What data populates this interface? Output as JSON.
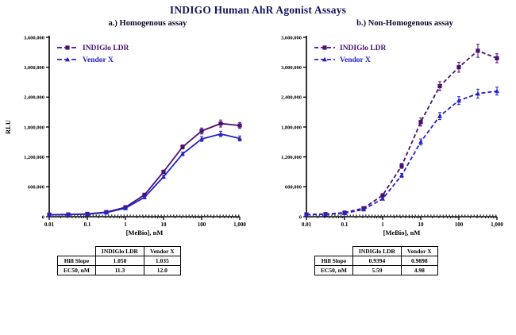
{
  "title": "INDIGO Human AhR Agonist Assays",
  "colors": {
    "title_text": "#14145c",
    "indiglo_purple": "#4b0f72",
    "vendor_blue": "#2323c8",
    "baseline_black": "#000000"
  },
  "chart_data": [
    {
      "type": "line",
      "title": "a.) Homogenous assay",
      "xlabel": "[MeBio], nM",
      "ylabel": "RLU",
      "x_scale": "log",
      "grid": false,
      "legend_position": "top-left",
      "xlim": [
        0.01,
        1000
      ],
      "ylim": [
        0,
        3600000
      ],
      "x_ticks": [
        "0.01",
        "0.1",
        "1",
        "10",
        "100",
        "1,000"
      ],
      "x_tick_values": [
        0.01,
        0.1,
        1,
        10,
        100,
        1000
      ],
      "y_ticks": [
        0,
        600000,
        1200000,
        1800000,
        2400000,
        3000000,
        3600000
      ],
      "x": [
        0.01,
        0.0316,
        0.1,
        0.316,
        1,
        3.16,
        10,
        31.6,
        100,
        316,
        1000
      ],
      "series": [
        {
          "name": "baseline-control",
          "color": "#000000",
          "dash": "1.5,2.4",
          "width": 1.2,
          "marker": "none",
          "legend": false,
          "values": [
            30000,
            30000,
            30000,
            30000,
            30000,
            30000,
            30000,
            30000,
            30000,
            30000,
            30000
          ]
        },
        {
          "name": "INDIGlo LDR",
          "color": "#4b0f72",
          "dash": "",
          "marker": "square",
          "legend": true,
          "values": [
            42000,
            45000,
            56000,
            92000,
            190000,
            440000,
            900000,
            1400000,
            1720000,
            1870000,
            1830000
          ],
          "errors": [
            5000,
            5000,
            6000,
            8000,
            12000,
            20000,
            35000,
            40000,
            60000,
            70000,
            60000
          ]
        },
        {
          "name": "Vendor X",
          "color": "#2323c8",
          "dash": "",
          "marker": "triangle",
          "legend": true,
          "values": [
            40000,
            43000,
            52000,
            84000,
            170000,
            390000,
            800000,
            1260000,
            1560000,
            1660000,
            1570000
          ],
          "errors": [
            4000,
            4000,
            5000,
            7000,
            10000,
            18000,
            30000,
            35000,
            50000,
            55000,
            50000
          ]
        }
      ]
    },
    {
      "type": "line",
      "title": "b.) Non-Homogenous assay",
      "xlabel": "[MeBio], nM",
      "ylabel": "",
      "x_scale": "log",
      "grid": false,
      "legend_position": "top-left",
      "xlim": [
        0.01,
        1000
      ],
      "ylim": [
        0,
        3600000
      ],
      "x_ticks": [
        "0.01",
        "0.1",
        "1",
        "10",
        "100",
        "1,000"
      ],
      "x_tick_values": [
        0.01,
        0.1,
        1,
        10,
        100,
        1000
      ],
      "y_ticks": [
        0,
        600000,
        1200000,
        1800000,
        2400000,
        3000000,
        3600000
      ],
      "x": [
        0.01,
        0.0316,
        0.1,
        0.316,
        1,
        3.16,
        10,
        31.6,
        100,
        316,
        1000
      ],
      "series": [
        {
          "name": "baseline-control",
          "color": "#000000",
          "dash": "1.5,2.4",
          "width": 1.2,
          "marker": "none",
          "legend": false,
          "values": [
            30000,
            30000,
            30000,
            30000,
            30000,
            30000,
            30000,
            30000,
            30000,
            30000,
            30000
          ]
        },
        {
          "name": "INDIGlo LDR",
          "color": "#4b0f72",
          "dash": "5,3",
          "marker": "square",
          "legend": true,
          "values": [
            46000,
            52000,
            82000,
            170000,
            430000,
            1020000,
            1900000,
            2620000,
            3000000,
            3330000,
            3180000
          ],
          "errors": [
            5000,
            6000,
            8000,
            12000,
            25000,
            50000,
            80000,
            90000,
            100000,
            130000,
            90000
          ]
        },
        {
          "name": "Vendor X",
          "color": "#2323c8",
          "dash": "5,3",
          "marker": "triangle",
          "legend": true,
          "values": [
            42000,
            47000,
            70000,
            145000,
            360000,
            830000,
            1500000,
            2020000,
            2330000,
            2470000,
            2520000
          ],
          "errors": [
            4000,
            5000,
            7000,
            10000,
            20000,
            40000,
            60000,
            70000,
            80000,
            90000,
            80000
          ]
        }
      ]
    }
  ],
  "tables": [
    {
      "columns": [
        "INDIGlo LDR",
        "Vendor X"
      ],
      "rows": [
        {
          "label": "Hill Slope",
          "values": [
            "1.050",
            "1.035"
          ]
        },
        {
          "label": "EC50, nM",
          "values": [
            "11.3",
            "12.0"
          ]
        }
      ]
    },
    {
      "columns": [
        "INDIGlo LDR",
        "Vendor X"
      ],
      "rows": [
        {
          "label": "Hill Slope",
          "values": [
            "0.9394",
            "0.9898"
          ]
        },
        {
          "label": "EC50, nM",
          "values": [
            "5.59",
            "4.98"
          ]
        }
      ]
    }
  ]
}
